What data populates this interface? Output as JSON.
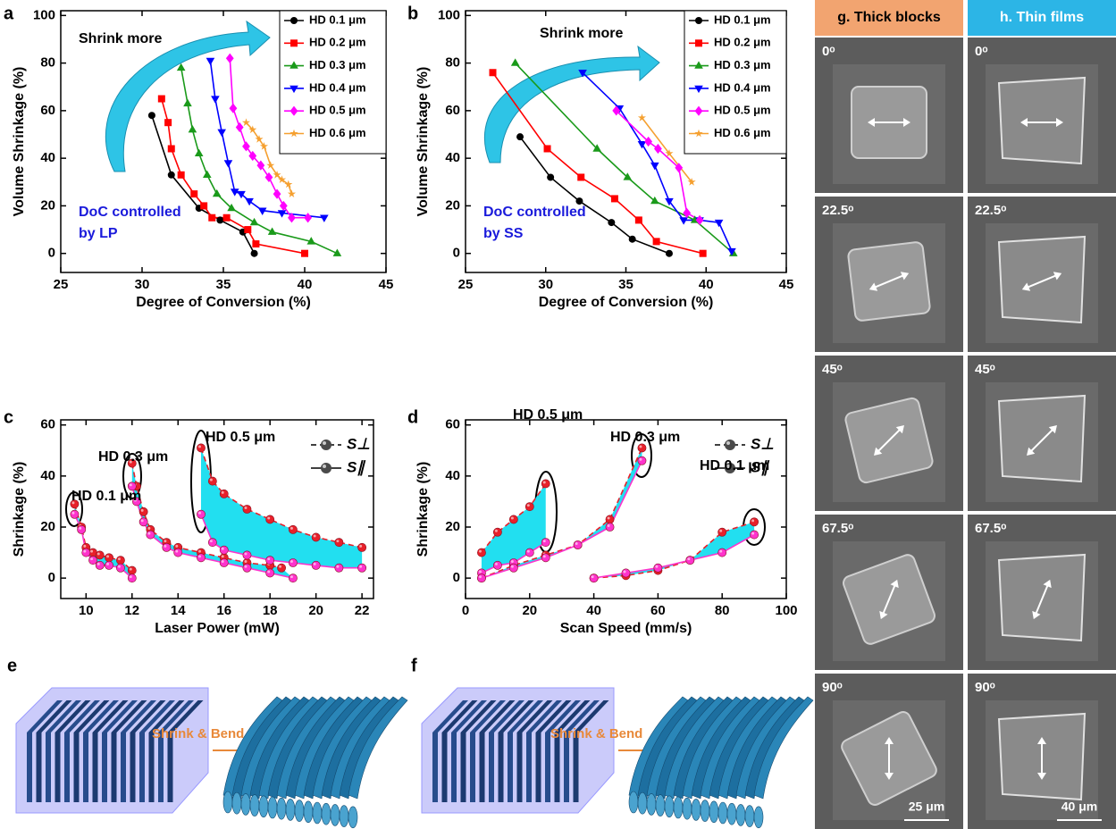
{
  "chart_data": [
    {
      "type": "line",
      "label": "a",
      "x_label": "Degree of Conversion (%)",
      "y_label": "Volume Shrinkage (%)",
      "annotations": [
        "Shrink more",
        "DoC controlled",
        "by LP"
      ],
      "xlim": [
        25,
        45
      ],
      "xticks": [
        25,
        30,
        35,
        40,
        45
      ],
      "ylim": [
        -8,
        102
      ],
      "yticks": [
        0,
        20,
        40,
        60,
        80,
        100
      ],
      "series": [
        {
          "name": "HD 0.1 μm",
          "color": "#000000",
          "marker": "circle",
          "x": [
            30.6,
            31.8,
            33.5,
            34.8,
            36.2,
            36.9
          ],
          "values": [
            58,
            33,
            19,
            14,
            9,
            0
          ]
        },
        {
          "name": "HD 0.2 μm",
          "color": "#ff0000",
          "marker": "square",
          "x": [
            31.2,
            31.6,
            31.8,
            32.4,
            33.2,
            33.8,
            34.3,
            35.2,
            36.5,
            37.0,
            40.0
          ],
          "values": [
            65,
            55,
            44,
            33,
            25,
            20,
            15,
            15,
            10,
            4,
            0
          ]
        },
        {
          "name": "HD 0.3 μm",
          "color": "#1a9a1a",
          "marker": "tri-up",
          "x": [
            32.4,
            32.8,
            33.1,
            33.5,
            34.0,
            34.6,
            35.5,
            36.9,
            38.0,
            40.4,
            42.0
          ],
          "values": [
            78,
            63,
            52,
            42,
            33,
            25,
            19,
            13,
            9,
            5,
            0
          ]
        },
        {
          "name": "HD 0.4 μm",
          "color": "#0000ff",
          "marker": "tri-down",
          "x": [
            34.2,
            34.5,
            34.9,
            35.3,
            35.7,
            36.1,
            36.6,
            37.4,
            38.6,
            41.2
          ],
          "values": [
            81,
            65,
            51,
            38,
            26,
            25,
            22,
            18,
            17,
            15
          ]
        },
        {
          "name": "HD 0.5 μm",
          "color": "#ff00ff",
          "marker": "diamond",
          "x": [
            35.4,
            35.6,
            36.0,
            36.4,
            36.8,
            37.3,
            37.8,
            38.3,
            38.7,
            39.2,
            40.2
          ],
          "values": [
            82,
            61,
            53,
            45,
            41,
            37,
            32,
            25,
            20,
            15,
            15
          ]
        },
        {
          "name": "HD 0.6 μm",
          "color": "#f5a030",
          "marker": "star",
          "x": [
            36.4,
            36.8,
            37.2,
            37.5,
            37.9,
            38.3,
            38.6,
            39.0,
            39.2
          ],
          "values": [
            55,
            52,
            48,
            45,
            37,
            33,
            31,
            29,
            25
          ]
        }
      ]
    },
    {
      "type": "line",
      "label": "b",
      "x_label": "Degree of Conversion (%)",
      "y_label": "Volume Shrinkage (%)",
      "annotations": [
        "Shrink more",
        "DoC controlled",
        "by SS"
      ],
      "xlim": [
        25,
        45
      ],
      "xticks": [
        25,
        30,
        35,
        40,
        45
      ],
      "ylim": [
        -8,
        102
      ],
      "yticks": [
        0,
        20,
        40,
        60,
        80,
        100
      ],
      "series": [
        {
          "name": "HD 0.1 μm",
          "color": "#000000",
          "marker": "circle",
          "x": [
            28.4,
            30.3,
            32.1,
            34.1,
            35.4,
            37.7
          ],
          "values": [
            49,
            32,
            22,
            13,
            6,
            0
          ]
        },
        {
          "name": "HD 0.2 μm",
          "color": "#ff0000",
          "marker": "square",
          "x": [
            26.7,
            30.1,
            32.2,
            34.3,
            35.8,
            36.9,
            39.8
          ],
          "values": [
            76,
            44,
            32,
            23,
            14,
            5,
            0
          ]
        },
        {
          "name": "HD 0.3 μm",
          "color": "#1a9a1a",
          "marker": "tri-up",
          "x": [
            28.1,
            33.2,
            35.1,
            36.8,
            39.3,
            41.7
          ],
          "values": [
            80,
            44,
            32,
            22,
            14,
            0
          ]
        },
        {
          "name": "HD 0.4 μm",
          "color": "#0000ff",
          "marker": "tri-down",
          "x": [
            32.3,
            34.6,
            36.0,
            36.8,
            37.7,
            38.6,
            39.6,
            40.8,
            41.6
          ],
          "values": [
            76,
            61,
            46,
            37,
            22,
            14,
            14,
            13,
            1
          ]
        },
        {
          "name": "HD 0.5 μm",
          "color": "#ff00ff",
          "marker": "diamond",
          "x": [
            34.4,
            36.4,
            37.0,
            38.3,
            38.8,
            39.6
          ],
          "values": [
            60,
            47,
            44,
            36,
            17,
            14
          ]
        },
        {
          "name": "HD 0.6 μm",
          "color": "#f5a030",
          "marker": "star",
          "x": [
            36.0,
            37.7,
            39.1
          ],
          "values": [
            57,
            42,
            30
          ]
        }
      ]
    },
    {
      "type": "line",
      "label": "c",
      "x_label": "Laser Power (mW)",
      "y_label": "Shrinkage (%)",
      "annotations": [
        "HD 0.5 μm",
        "HD 0.3 μm",
        "HD 0.1 μm"
      ],
      "xlim": [
        8.9,
        22.5
      ],
      "xticks": [
        10,
        12,
        14,
        16,
        18,
        20,
        22
      ],
      "ylim": [
        -8,
        62
      ],
      "yticks": [
        0,
        20,
        40,
        60
      ],
      "area_color": "#22dff0",
      "legend_color": "#4a4a4a",
      "series": [
        {
          "name": "S⊥",
          "color": "#e8202a",
          "marker": "sphere",
          "dash": true,
          "x": [
            9.5,
            9.8,
            10,
            10.3,
            10.6,
            11,
            11.5,
            12,
            null,
            12,
            12.2,
            12.5,
            12.8,
            13.5,
            14,
            15,
            16,
            17,
            18,
            18.5,
            null,
            15,
            15.5,
            16,
            17,
            18,
            19,
            20,
            21,
            22
          ],
          "values": [
            29,
            20,
            12,
            10,
            9,
            8,
            7,
            3,
            null,
            45,
            36,
            26,
            19,
            14,
            12,
            10,
            8,
            6,
            5,
            4,
            null,
            51,
            38,
            33,
            27,
            23,
            19,
            16,
            14,
            12
          ]
        },
        {
          "name": "S∥",
          "color": "#ff33cc",
          "marker": "sphere",
          "dash": false,
          "x": [
            9.5,
            9.8,
            10,
            10.3,
            10.6,
            11,
            11.5,
            12,
            null,
            12,
            12.2,
            12.5,
            12.8,
            13.5,
            14,
            15,
            16,
            17,
            18,
            19,
            null,
            15,
            15.5,
            16,
            17,
            18,
            19,
            20,
            21,
            22
          ],
          "values": [
            25,
            19,
            10,
            7,
            5,
            5,
            4,
            0,
            null,
            36,
            30,
            22,
            17,
            12,
            10,
            8,
            6,
            4,
            2,
            0,
            null,
            25,
            14,
            11,
            9,
            7,
            6,
            5,
            4,
            4
          ]
        }
      ]
    },
    {
      "type": "line",
      "label": "d",
      "x_label": "Scan Speed (mm/s)",
      "y_label": "Shrinkage (%)",
      "annotations": [
        "HD 0.5 μm",
        "HD 0.3 μm",
        "HD 0.1 μm"
      ],
      "xlim": [
        0,
        100
      ],
      "xticks": [
        0,
        20,
        40,
        60,
        80,
        100
      ],
      "ylim": [
        -8,
        62
      ],
      "yticks": [
        0,
        20,
        40,
        60
      ],
      "area_color": "#22dff0",
      "legend_color": "#4a4a4a",
      "series": [
        {
          "name": "S⊥",
          "color": "#e8202a",
          "marker": "sphere",
          "dash": true,
          "x": [
            5,
            10,
            15,
            20,
            25,
            null,
            5,
            15,
            25,
            35,
            45,
            55,
            null,
            40,
            50,
            60,
            70,
            80,
            90
          ],
          "values": [
            10,
            18,
            23,
            28,
            37,
            null,
            0,
            5,
            9,
            13,
            23,
            51,
            null,
            0,
            1,
            3,
            7,
            18,
            22
          ]
        },
        {
          "name": "S∥",
          "color": "#ff33cc",
          "marker": "sphere",
          "dash": false,
          "x": [
            5,
            10,
            15,
            20,
            25,
            null,
            5,
            15,
            25,
            35,
            45,
            55,
            null,
            40,
            50,
            60,
            70,
            80,
            90
          ],
          "values": [
            2,
            5,
            6,
            10,
            14,
            null,
            0,
            4,
            8,
            13,
            20,
            46,
            null,
            0,
            2,
            4,
            7,
            10,
            17
          ]
        }
      ]
    }
  ],
  "panels": {
    "e": {
      "label": "e",
      "arrow_text": "Shrink & Bend"
    },
    "f": {
      "label": "f",
      "arrow_text": "Shrink & Bend"
    },
    "g": {
      "header": "g. Thick blocks",
      "angles": [
        "0ᵒ",
        "22.5ᵒ",
        "45ᵒ",
        "67.5ᵒ",
        "90ᵒ"
      ],
      "scale_bar": "25 μm"
    },
    "h": {
      "header": "h. Thin films",
      "angles": [
        "0ᵒ",
        "22.5ᵒ",
        "45ᵒ",
        "67.5ᵒ",
        "90ᵒ"
      ],
      "scale_bar": "40 μm"
    }
  }
}
